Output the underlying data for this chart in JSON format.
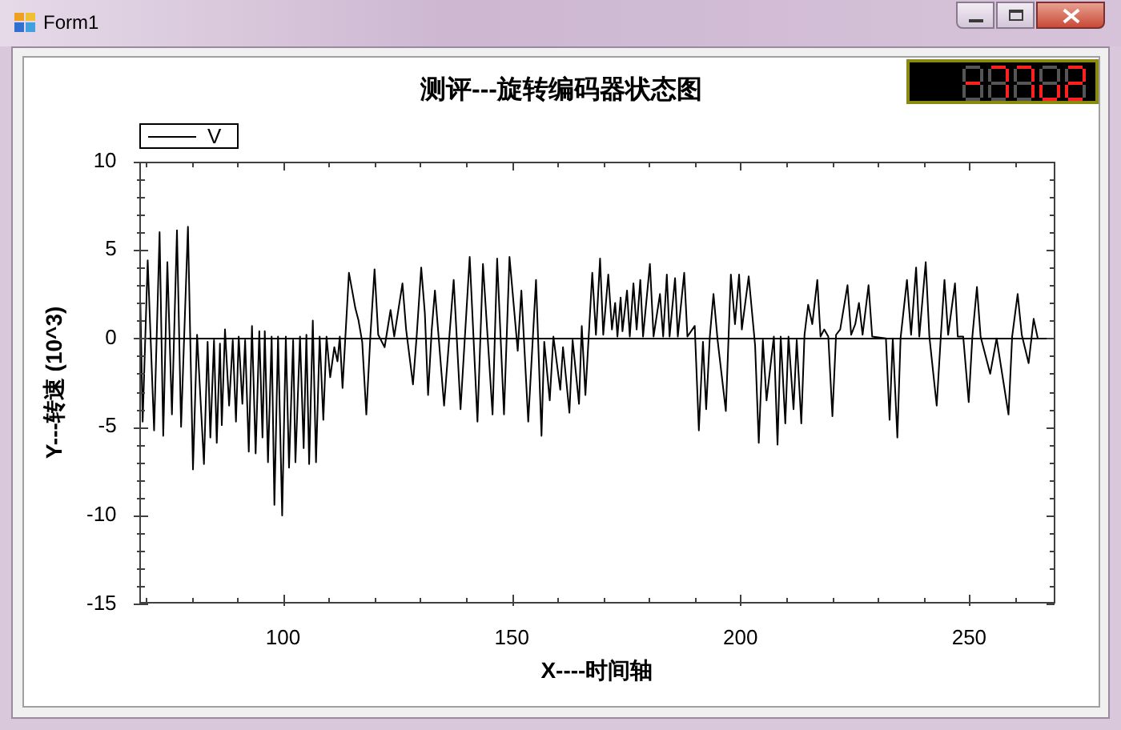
{
  "chart_data": {
    "type": "line",
    "title": "测评---旋转编码器状态图",
    "xlabel": "X----时间轴",
    "ylabel": "Y---转速 (10^3)",
    "annotations": [
      "Form1"
    ],
    "series": [
      {
        "name": "V",
        "color": "#000000",
        "x": [
          68.8,
          69.3,
          70.4,
          71.8,
          73.0,
          73.8,
          74.7,
          75.7,
          76.8,
          77.7,
          79.2,
          80.3,
          81.2,
          82.7,
          83.5,
          84.1,
          84.9,
          85.5,
          86.2,
          86.6,
          87.3,
          88.2,
          89.0,
          89.7,
          90.3,
          91.1,
          91.7,
          92.5,
          93.2,
          94.0,
          94.8,
          95.5,
          96.0,
          96.7,
          97.5,
          98.1,
          98.9,
          99.8,
          100.6,
          101.3,
          102.2,
          102.7,
          103.7,
          104.5,
          105.1,
          105.7,
          106.5,
          107.2,
          108.0,
          108.8,
          109.5,
          110.3,
          111.2,
          111.9,
          112.4,
          113.0,
          114.4,
          115.1,
          115.8,
          116.5,
          117.3,
          118.2,
          119.1,
          120.0,
          120.8,
          122.2,
          123.5,
          124.3,
          126.1,
          126.9,
          128.4,
          129.2,
          130.2,
          131.0,
          131.7,
          132.5,
          133.2,
          135.2,
          137.3,
          138.8,
          140.8,
          142.5,
          143.7,
          145.8,
          146.8,
          148.3,
          149.5,
          151.3,
          152.1,
          153.6,
          155.3,
          156.5,
          157.1,
          158.3,
          159.1,
          160.6,
          161.2,
          162.6,
          163.3,
          164.7,
          165.3,
          166.1,
          167.6,
          168.4,
          169.3,
          170.0,
          171.1,
          171.9,
          172.6,
          173.1,
          173.8,
          174.2,
          175.2,
          175.8,
          176.6,
          177.3,
          178.1,
          178.7,
          180.2,
          181.0,
          182.4,
          183.1,
          183.9,
          184.5,
          185.7,
          186.3,
          187.7,
          188.4,
          190.0,
          190.9,
          191.8,
          192.5,
          193.3,
          194.1,
          195.0,
          196.8,
          197.4,
          197.9,
          198.8,
          199.7,
          200.3,
          201.8,
          203.2,
          204.0,
          204.9,
          205.7,
          207.3,
          208.1,
          208.8,
          209.8,
          210.5,
          211.6,
          212.3,
          213.3,
          214.0,
          214.8,
          215.7,
          216.8,
          217.5,
          218.3,
          219.2,
          220.1,
          220.9,
          221.8,
          223.4,
          224.2,
          225.1,
          225.9,
          226.7,
          228.0,
          228.8,
          231.8,
          232.6,
          233.3,
          234.3,
          235.0,
          236.4,
          237.3,
          238.4,
          239.1,
          240.5,
          241.3,
          242.9,
          243.8,
          244.6,
          245.4,
          246.9,
          247.5,
          248.7,
          249.9,
          250.7,
          251.7,
          252.5,
          254.6,
          256.0,
          258.6,
          259.4,
          260.6,
          261.5,
          263.0,
          264.1,
          265.0
        ],
        "values": [
          2.0,
          -4.7,
          4.4,
          -5.2,
          6.0,
          -5.5,
          4.3,
          -4.3,
          6.1,
          -5.0,
          6.3,
          -7.4,
          0.2,
          -7.1,
          -0.2,
          -5.6,
          -0.1,
          -5.9,
          -0.3,
          -4.9,
          0.5,
          -3.8,
          -0.1,
          -4.7,
          0.1,
          -3.7,
          -0.1,
          -6.4,
          0.7,
          -6.5,
          0.4,
          -5.6,
          0.4,
          -7.0,
          0.1,
          -9.4,
          0.1,
          -10.0,
          0.1,
          -7.3,
          -0.1,
          -7.0,
          0.1,
          -6.2,
          0.2,
          -7.1,
          1.0,
          -7.0,
          0.1,
          -4.6,
          0.1,
          -2.2,
          -0.5,
          -1.3,
          0.1,
          -2.8,
          3.7,
          2.7,
          1.7,
          1.0,
          -0.2,
          -4.3,
          0.2,
          3.9,
          0.2,
          -0.5,
          1.6,
          0.1,
          3.1,
          0.5,
          -2.6,
          0.1,
          4.0,
          1.4,
          -3.2,
          0.5,
          2.7,
          -3.8,
          3.3,
          -4.0,
          4.6,
          -4.7,
          4.2,
          -4.3,
          4.5,
          -4.3,
          4.6,
          -0.7,
          2.7,
          -4.7,
          3.3,
          -5.5,
          -0.2,
          -3.5,
          0.1,
          -2.9,
          -0.5,
          -4.2,
          -0.1,
          -3.7,
          0.7,
          -3.2,
          3.7,
          0.2,
          4.5,
          0.2,
          3.6,
          0.5,
          2.0,
          0.1,
          2.3,
          0.4,
          2.7,
          0.1,
          3.1,
          0.5,
          3.3,
          0.1,
          4.2,
          0.1,
          2.5,
          0.1,
          3.6,
          0.1,
          3.4,
          0.1,
          3.7,
          0.1,
          0.7,
          -5.2,
          -0.2,
          -4.0,
          0.1,
          2.5,
          -0.1,
          -4.1,
          0.1,
          3.6,
          0.8,
          3.6,
          0.5,
          3.5,
          -0.4,
          -5.9,
          -0.1,
          -3.5,
          0.1,
          -6.0,
          0.1,
          -4.8,
          0.1,
          -4.0,
          -0.1,
          -4.8,
          0.2,
          1.9,
          0.8,
          3.3,
          0.1,
          0.5,
          0.1,
          -4.4,
          0.2,
          0.5,
          3.0,
          0.2,
          0.8,
          2.0,
          0.2,
          3.0,
          0.1,
          0.0,
          -4.6,
          0.0,
          -5.6,
          0.0,
          3.3,
          0.2,
          4.0,
          0.1,
          4.3,
          0.1,
          -3.8,
          0.1,
          3.3,
          0.2,
          3.1,
          0.1,
          0.1,
          -3.6,
          0.1,
          2.9,
          0.1,
          -2.0,
          0.0,
          -4.3,
          0.1,
          2.5,
          0.2,
          -1.4,
          1.1,
          0.0
        ]
      }
    ],
    "xlim": [
      68.5,
      268.7
    ],
    "xticks": [
      {
        "value": 70,
        "label": null
      },
      {
        "value": 80,
        "label": null
      },
      {
        "value": 90,
        "label": null
      },
      100,
      {
        "value": 110,
        "label": null
      },
      {
        "value": 120,
        "label": null
      },
      {
        "value": 130,
        "label": null
      },
      {
        "value": 140,
        "label": null
      },
      150,
      {
        "value": 160,
        "label": null
      },
      {
        "value": 170,
        "label": null
      },
      {
        "value": 180,
        "label": null
      },
      {
        "value": 190,
        "label": null
      },
      200,
      {
        "value": 210,
        "label": null
      },
      {
        "value": 220,
        "label": null
      },
      {
        "value": 230,
        "label": null
      },
      {
        "value": 240,
        "label": null
      },
      250,
      {
        "value": 260,
        "label": null
      }
    ],
    "ylim": [
      -15,
      10
    ],
    "yticks": [
      -15,
      {
        "value": -14,
        "label": null
      },
      {
        "value": -13,
        "label": null
      },
      {
        "value": -12,
        "label": null
      },
      {
        "value": -11,
        "label": null
      },
      -10,
      {
        "value": -9,
        "label": null
      },
      {
        "value": -8,
        "label": null
      },
      {
        "value": -7,
        "label": null
      },
      {
        "value": -6,
        "label": null
      },
      -5,
      {
        "value": -4,
        "label": null
      },
      {
        "value": -3,
        "label": null
      },
      {
        "value": -2,
        "label": null
      },
      {
        "value": -1,
        "label": null
      },
      0,
      {
        "value": 1,
        "label": null
      },
      {
        "value": 2,
        "label": null
      },
      {
        "value": 3,
        "label": null
      },
      {
        "value": 4,
        "label": null
      },
      5,
      {
        "value": 6,
        "label": null
      },
      {
        "value": 7,
        "label": null
      },
      {
        "value": 8,
        "label": null
      },
      {
        "value": 9,
        "label": null
      },
      10
    ],
    "ref_lines": [
      {
        "axis": "y",
        "value": 0,
        "color": "#000000"
      }
    ],
    "legend": "top left"
  }
}
